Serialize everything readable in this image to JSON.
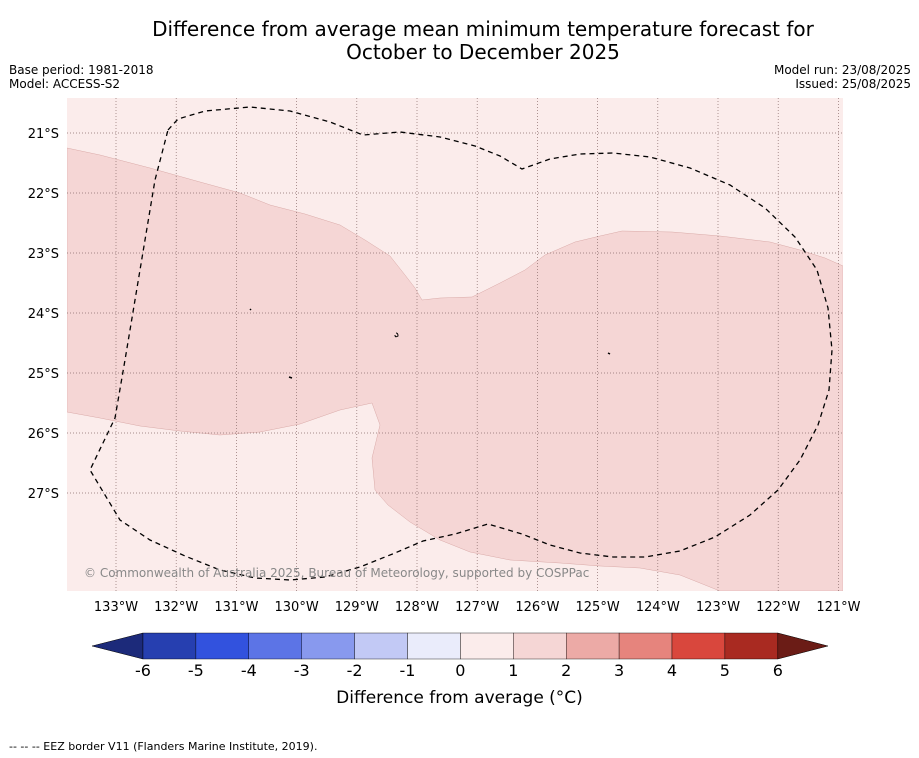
{
  "title": {
    "line1": "Difference from average mean minimum temperature forecast for",
    "line2": "October to December 2025"
  },
  "meta": {
    "base_period": "Base period: 1981-2018",
    "model": "Model: ACCESS-S2",
    "model_run": "Model run: 23/08/2025",
    "issued": "Issued: 25/08/2025"
  },
  "map": {
    "copyright": "© Commonwealth of Australia 2025, Bureau of Meteorology, supported by COSPPac",
    "background_color": "#fbeceb",
    "anomaly_region_color": "#f5d6d5",
    "lon_ticks": [
      "133°W",
      "132°W",
      "131°W",
      "130°W",
      "129°W",
      "128°W",
      "127°W",
      "126°W",
      "125°W",
      "124°W",
      "123°W",
      "122°W",
      "121°W"
    ],
    "lat_ticks": [
      "21°S",
      "22°S",
      "23°S",
      "24°S",
      "25°S",
      "26°S",
      "27°S"
    ]
  },
  "colorbar": {
    "ticks": [
      "-6",
      "-5",
      "-4",
      "-3",
      "-2",
      "-1",
      "0",
      "1",
      "2",
      "3",
      "4",
      "5",
      "6"
    ],
    "colors": [
      "#1c2a7a",
      "#263fb0",
      "#3252de",
      "#5c74e6",
      "#8899ee",
      "#c2c9f5",
      "#eaecfb",
      "#fbeceb",
      "#f5d6d5",
      "#ecaaa6",
      "#e6847d",
      "#d9473d",
      "#a92a21",
      "#6b1c16"
    ],
    "label": "Difference from average (°C)"
  },
  "footnote": "--  --  -- EEZ border V11 (Flanders Marine Institute, 2019)."
}
